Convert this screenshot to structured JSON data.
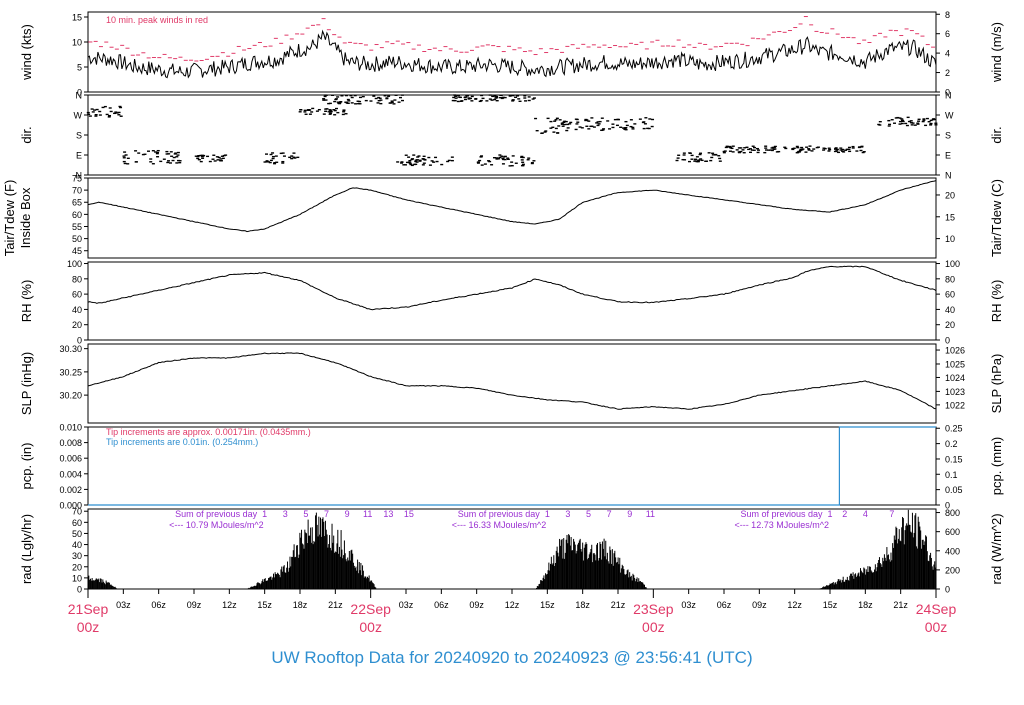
{
  "chart_data": {
    "type": "line",
    "title": "UW Rooftop Data for 20240920  to  20240923 @ 23:56:41  (UTC)",
    "time_axis": {
      "unit": "hours since 21Sep 00z",
      "range": [
        0,
        72
      ],
      "major_ticks": [
        {
          "hour": 0,
          "line1": "21Sep",
          "line2": "00z"
        },
        {
          "hour": 24,
          "line1": "22Sep",
          "line2": "00z"
        },
        {
          "hour": 48,
          "line1": "23Sep",
          "line2": "00z"
        },
        {
          "hour": 72,
          "line1": "24Sep",
          "line2": "00z"
        }
      ],
      "minor_ticks": [
        {
          "hour": 3,
          "label": "03z"
        },
        {
          "hour": 6,
          "label": "06z"
        },
        {
          "hour": 9,
          "label": "09z"
        },
        {
          "hour": 12,
          "label": "12z"
        },
        {
          "hour": 15,
          "label": "15z"
        },
        {
          "hour": 18,
          "label": "18z"
        },
        {
          "hour": 21,
          "label": "21z"
        },
        {
          "hour": 27,
          "label": "03z"
        },
        {
          "hour": 30,
          "label": "06z"
        },
        {
          "hour": 33,
          "label": "09z"
        },
        {
          "hour": 36,
          "label": "12z"
        },
        {
          "hour": 39,
          "label": "15z"
        },
        {
          "hour": 42,
          "label": "18z"
        },
        {
          "hour": 45,
          "label": "21z"
        },
        {
          "hour": 51,
          "label": "03z"
        },
        {
          "hour": 54,
          "label": "06z"
        },
        {
          "hour": 57,
          "label": "09z"
        },
        {
          "hour": 60,
          "label": "12z"
        },
        {
          "hour": 63,
          "label": "15z"
        },
        {
          "hour": 66,
          "label": "18z"
        },
        {
          "hour": 69,
          "label": "21z"
        }
      ]
    },
    "panels": [
      {
        "id": "wind",
        "type": "line",
        "ylabel_left": "wind (kts)",
        "ylabel_right": "wind (m/s)",
        "ylim": [
          0,
          16
        ],
        "ticks_left": [
          "0",
          "5",
          "10",
          "15"
        ],
        "tick_values_left": [
          0,
          5,
          10,
          15
        ],
        "ticks_right": [
          "0",
          "2",
          "4",
          "6",
          "8"
        ],
        "tick_values_right_in_kts": [
          0,
          3.89,
          7.78,
          11.66,
          15.55
        ],
        "annotation": "10 min. peak winds in red",
        "series": [
          {
            "name": "wind speed",
            "color": "#000000",
            "x": [
              0,
              2,
              4,
              6,
              8,
              10,
              12,
              14,
              16,
              18,
              19,
              20,
              22,
              24,
              26,
              28,
              30,
              32,
              34,
              36,
              38,
              40,
              42,
              44,
              46,
              48,
              50,
              52,
              54,
              56,
              58,
              60,
              61,
              62,
              64,
              66,
              68,
              70,
              72
            ],
            "y": [
              7,
              6.5,
              5,
              4.5,
              4,
              4.5,
              5,
              6,
              6.5,
              8.5,
              9,
              11,
              6,
              5.5,
              6,
              5.5,
              5,
              5,
              5.5,
              5,
              4.5,
              5,
              5.5,
              6,
              5.5,
              6,
              6.5,
              5.5,
              6,
              6.5,
              7.5,
              8.5,
              9.5,
              8,
              7.5,
              6,
              8.5,
              9,
              5.5
            ]
          },
          {
            "name": "10 min. peak",
            "color": "#e03a68",
            "x": [
              0,
              2,
              4,
              6,
              8,
              10,
              12,
              14,
              16,
              18,
              19,
              20,
              22,
              24,
              26,
              28,
              30,
              32,
              34,
              36,
              38,
              40,
              42,
              44,
              46,
              48,
              50,
              52,
              54,
              56,
              58,
              60,
              61,
              62,
              64,
              66,
              68,
              70,
              72
            ],
            "y": [
              10,
              9.5,
              8,
              7,
              6.5,
              7,
              8,
              9,
              10,
              12,
              13,
              14,
              9.5,
              9,
              9.5,
              9,
              8.5,
              8.5,
              9,
              8.5,
              8,
              8.5,
              9,
              9.5,
              9,
              9.5,
              10,
              9,
              9.5,
              10,
              11.5,
              13,
              15,
              12.5,
              11.5,
              9.5,
              12,
              12,
              8.5
            ]
          }
        ]
      },
      {
        "id": "dir",
        "type": "scatter",
        "ylabel_left": "dir.",
        "ylabel_right": "dir.",
        "ylim": [
          0,
          360
        ],
        "ticks": [
          "N",
          "E",
          "S",
          "W",
          "N"
        ],
        "tick_values": [
          0,
          90,
          180,
          270,
          360
        ],
        "clusters": [
          {
            "x": [
              0,
              3
            ],
            "y": [
              260,
              310
            ]
          },
          {
            "x": [
              3,
              8
            ],
            "y": [
              50,
              110
            ]
          },
          {
            "x": [
              9,
              12
            ],
            "y": [
              60,
              90
            ]
          },
          {
            "x": [
              15,
              18
            ],
            "y": [
              50,
              100
            ]
          },
          {
            "x": [
              18,
              22
            ],
            "y": [
              270,
              300
            ]
          },
          {
            "x": [
              20,
              27
            ],
            "y": [
              320,
              360
            ]
          },
          {
            "x": [
              26,
              31
            ],
            "y": [
              40,
              90
            ]
          },
          {
            "x": [
              31,
              38
            ],
            "y": [
              330,
              360
            ]
          },
          {
            "x": [
              33,
              38
            ],
            "y": [
              40,
              90
            ]
          },
          {
            "x": [
              38,
              40
            ],
            "y": [
              180,
              260
            ]
          },
          {
            "x": [
              40,
              48
            ],
            "y": [
              200,
              260
            ]
          },
          {
            "x": [
              50,
              54
            ],
            "y": [
              60,
              100
            ]
          },
          {
            "x": [
              54,
              66
            ],
            "y": [
              100,
              130
            ]
          },
          {
            "x": [
              67,
              72
            ],
            "y": [
              220,
              260
            ]
          }
        ]
      },
      {
        "id": "temp",
        "type": "line",
        "ylabel_left": "Tair/Tdew (F)",
        "ylabel_left_2": "Inside Box",
        "ylabel_right": "Tair/Tdew (C)",
        "ylim": [
          42,
          75
        ],
        "ticks_left": [
          "45",
          "50",
          "55",
          "60",
          "65",
          "70",
          "75"
        ],
        "tick_values_left": [
          45,
          50,
          55,
          60,
          65,
          70,
          75
        ],
        "ticks_right": [
          "10",
          "15",
          "20"
        ],
        "tick_values_right_in_F": [
          50,
          59,
          68
        ],
        "series": [
          {
            "name": "Tair",
            "color": "#000000",
            "x": [
              0,
              1,
              3,
              6,
              9,
              12,
              13.5,
              15,
              18,
              21,
              22.5,
              24,
              27,
              30,
              33,
              36,
              38,
              40,
              42,
              45,
              48,
              51,
              54,
              57,
              60,
              63,
              66,
              69,
              72
            ],
            "y": [
              64,
              65,
              63,
              60,
              57,
              54,
              53,
              54,
              60,
              68,
              71,
              70,
              66,
              63,
              60,
              57,
              56,
              58,
              65,
              69,
              70,
              68,
              66,
              64,
              62,
              61,
              64,
              70,
              74
            ]
          }
        ]
      },
      {
        "id": "rh",
        "type": "line",
        "ylabel_left": "RH (%)",
        "ylabel_right": "RH (%)",
        "ylim": [
          0,
          102
        ],
        "ticks": [
          "0",
          "20",
          "40",
          "60",
          "80",
          "100"
        ],
        "tick_values": [
          0,
          20,
          40,
          60,
          80,
          100
        ],
        "series": [
          {
            "name": "RH",
            "color": "#000000",
            "x": [
              0,
              1,
              3,
              6,
              9,
              12,
              15,
              18,
              21,
              24,
              27,
              30,
              33,
              36,
              38,
              40,
              42,
              45,
              48,
              51,
              54,
              57,
              60,
              61,
              63,
              66,
              69,
              72
            ],
            "y": [
              50,
              48,
              55,
              65,
              75,
              85,
              88,
              78,
              55,
              40,
              43,
              52,
              60,
              68,
              80,
              72,
              60,
              50,
              49,
              54,
              60,
              72,
              82,
              90,
              96,
              96,
              78,
              65
            ]
          }
        ]
      },
      {
        "id": "slp",
        "type": "line",
        "ylabel_left": "SLP (inHg)",
        "ylabel_right": "SLP (hPa)",
        "ylim": [
          30.14,
          30.31
        ],
        "ticks_left": [
          "30.20",
          "30.25",
          "30.30"
        ],
        "tick_values_left": [
          30.2,
          30.25,
          30.3
        ],
        "ticks_right": [
          "1022",
          "1023",
          "1024",
          "1025",
          "1026"
        ],
        "tick_values_right_in_inHg": [
          30.179,
          30.208,
          30.238,
          30.267,
          30.297
        ],
        "series": [
          {
            "name": "SLP",
            "color": "#000000",
            "x": [
              0,
              3,
              6,
              9,
              12,
              15,
              18,
              21,
              24,
              27,
              30,
              33,
              36,
              39,
              42,
              45,
              48,
              51,
              54,
              57,
              60,
              63,
              66,
              69,
              72
            ],
            "y": [
              30.22,
              30.24,
              30.27,
              30.28,
              30.28,
              30.29,
              30.29,
              30.27,
              30.24,
              30.22,
              30.22,
              30.215,
              30.2,
              30.19,
              30.185,
              30.17,
              30.175,
              30.17,
              30.18,
              30.2,
              30.21,
              30.22,
              30.23,
              30.21,
              30.17
            ]
          }
        ]
      },
      {
        "id": "pcp",
        "type": "line",
        "ylabel_left": "pcp. (in)",
        "ylabel_right": "pcp. (mm)",
        "ylim": [
          0,
          0.01
        ],
        "ticks_left": [
          "0.000",
          "0.002",
          "0.004",
          "0.006",
          "0.008",
          "0.010"
        ],
        "tick_values_left": [
          0,
          0.002,
          0.004,
          0.006,
          0.008,
          0.01
        ],
        "ticks_right": [
          "0",
          "0.05",
          "0.1",
          "0.15",
          "0.2",
          "0.25"
        ],
        "tick_values_right_in_in": [
          0,
          0.00197,
          0.00394,
          0.0059,
          0.00787,
          0.00984
        ],
        "annotations": [
          {
            "text": "Tip increments are approx. 0.00171in. (0.0435mm.)",
            "color": "#e03a68"
          },
          {
            "text": "Tip increments are 0.01in. (0.254mm.)",
            "color": "#2f8fd0"
          }
        ],
        "series": [
          {
            "name": "pcp",
            "color": "#2f8fd0",
            "x": [
              0,
              63.8,
              63.8,
              72
            ],
            "y": [
              0,
              0,
              0.01,
              0.01
            ]
          }
        ]
      },
      {
        "id": "rad",
        "type": "bar",
        "ylabel_left": "rad (Lgly/hr)",
        "ylabel_right": "rad (W/m^2)",
        "ylim": [
          0,
          72
        ],
        "ticks_left": [
          "0",
          "10",
          "20",
          "30",
          "40",
          "50",
          "60",
          "70"
        ],
        "tick_values_left": [
          0,
          10,
          20,
          30,
          40,
          50,
          60,
          70
        ],
        "ticks_right": [
          "0",
          "200",
          "400",
          "600",
          "800"
        ],
        "tick_values_right_in_Lgly": [
          0,
          17.2,
          34.4,
          51.6,
          68.8
        ],
        "series": [
          {
            "name": "solar radiation",
            "color": "#000000",
            "x": [
              0,
              1,
              2,
              2.5,
              13.5,
              15,
              16,
              17,
              18,
              19,
              20,
              21,
              22,
              23,
              24,
              24.5,
              38,
              39,
              40,
              41,
              42,
              43,
              44,
              45,
              46,
              47,
              47.5,
              62,
              63,
              64,
              65,
              66,
              67,
              68,
              69,
              70,
              71,
              72
            ],
            "y": [
              12,
              10,
              5,
              0,
              0,
              10,
              15,
              25,
              55,
              68,
              65,
              58,
              45,
              25,
              10,
              0,
              0,
              20,
              45,
              50,
              45,
              42,
              45,
              30,
              15,
              8,
              0,
              0,
              5,
              10,
              15,
              20,
              28,
              40,
              68,
              70,
              55,
              20
            ]
          }
        ],
        "day_hour_markers": [
          {
            "day_start": 15,
            "labels": [
              "1",
              "3",
              "5",
              "7",
              "9",
              "11",
              "13",
              "15"
            ]
          },
          {
            "day_start": 39,
            "labels": [
              "1",
              "3",
              "5",
              "7",
              "9",
              "11"
            ]
          },
          {
            "day_start": 63,
            "labels": [
              "1",
              "2",
              "4",
              "7"
            ]
          }
        ],
        "annotations": [
          {
            "x": 4,
            "line1": "Sum of previous day",
            "line2": "<--- 10.79 MJoules/m^2"
          },
          {
            "x": 28,
            "line1": "Sum of previous day",
            "line2": "<--- 16.33 MJoules/m^2"
          },
          {
            "x": 52,
            "line1": "Sum of previous day",
            "line2": "<--- 12.73 MJoules/m^2"
          }
        ]
      }
    ],
    "colors": {
      "accent_red": "#e03a68",
      "accent_blue": "#2f8fd0",
      "annotation_purple": "#9a2fd2",
      "line": "#000000"
    }
  }
}
